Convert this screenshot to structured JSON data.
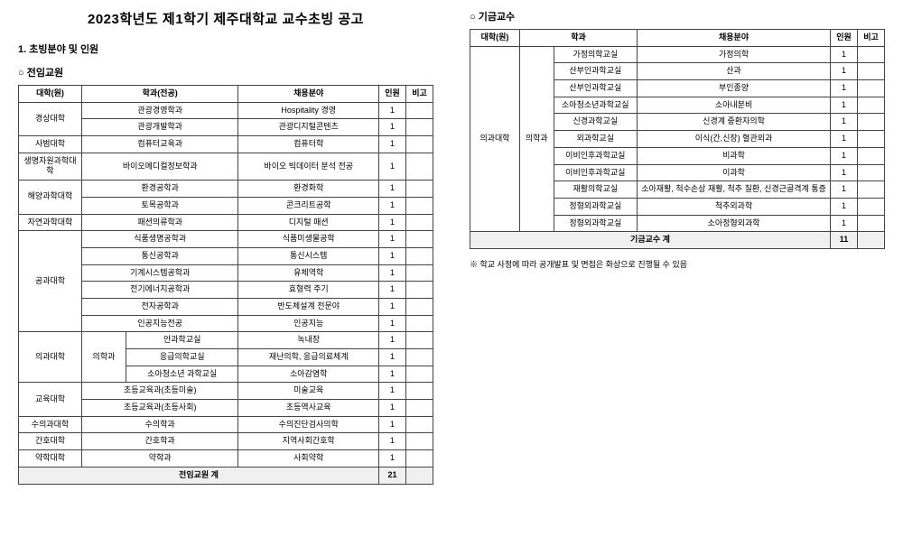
{
  "title": "2023학년도 제1학기 제주대학교 교수초빙 공고",
  "section1": "1. 초빙분야 및 인원",
  "leftSubtitle": "○ 전임교원",
  "rightSubtitle": "○ 기금교수",
  "headers": {
    "col1": "대학(원)",
    "col2": "학과(전공)",
    "col2b": "학과",
    "col3": "채용분야",
    "col4": "인원",
    "col5": "비고"
  },
  "leftRows": [
    {
      "c": "경상대학",
      "rs": 2,
      "d": "관광경영학과",
      "cs": 2,
      "f": "Hospitality 경영",
      "n": "1"
    },
    {
      "d": "관광개발학과",
      "cs": 2,
      "f": "관광디지털콘텐츠",
      "n": "1"
    },
    {
      "c": "사범대학",
      "rs": 1,
      "d": "컴퓨터교육과",
      "cs": 2,
      "f": "컴퓨터학",
      "n": "1"
    },
    {
      "c": "생명자원과학대학",
      "rs": 1,
      "d": "바이오메디컬정보학과",
      "cs": 2,
      "f": "바이오 빅데이터 분석 전공",
      "n": "1"
    },
    {
      "c": "해양과학대학",
      "rs": 2,
      "d": "환경공학과",
      "cs": 2,
      "f": "환경화학",
      "n": "1"
    },
    {
      "d": "토목공학과",
      "cs": 2,
      "f": "콘크리트공학",
      "n": "1"
    },
    {
      "c": "자연과학대학",
      "rs": 1,
      "d": "패션의류학과",
      "cs": 2,
      "f": "디지털 패션",
      "n": "1"
    },
    {
      "c": "공과대학",
      "rs": 6,
      "d": "식품생명공학과",
      "cs": 2,
      "f": "식품미생물공학",
      "n": "1"
    },
    {
      "d": "통신공학과",
      "cs": 2,
      "f": "통신시스템",
      "n": "1"
    },
    {
      "d": "기계시스템공학과",
      "cs": 2,
      "f": "유체역학",
      "n": "1"
    },
    {
      "d": "전기에너지공학과",
      "cs": 2,
      "f": "효형력 주기",
      "n": "1"
    },
    {
      "d": "전자공학과",
      "cs": 2,
      "f": "반도체설계 전문야",
      "n": "1"
    },
    {
      "d": "인공지능전공",
      "cs": 2,
      "f": "인공지능",
      "n": "1"
    },
    {
      "c": "의과대학",
      "rs": 3,
      "d": "의학과",
      "drs": 3,
      "e": "안과학교실",
      "f": "녹내장",
      "n": "1"
    },
    {
      "e": "응급의학교실",
      "f": "재난의학, 응급의료체계",
      "n": "1"
    },
    {
      "e": "소아청소년 과학교실",
      "f": "소아감염학",
      "n": "1"
    },
    {
      "c": "교육대학",
      "rs": 2,
      "d": "초등교육과(초등미술)",
      "cs": 2,
      "f": "미술교육",
      "n": "1"
    },
    {
      "d": "초등교육과(초등사회)",
      "cs": 2,
      "f": "초등역사교육",
      "n": "1"
    },
    {
      "c": "수의과대학",
      "rs": 1,
      "d": "수의학과",
      "cs": 2,
      "f": "수의진단검사의학",
      "n": "1"
    },
    {
      "c": "간호대학",
      "rs": 1,
      "d": "간호학과",
      "cs": 2,
      "f": "지역사회간호학",
      "n": "1"
    },
    {
      "c": "약학대학",
      "rs": 1,
      "d": "약학과",
      "cs": 2,
      "f": "사회약학",
      "n": "1"
    }
  ],
  "leftTotal": {
    "label": "전임교원 계",
    "n": "21"
  },
  "rightRows": [
    {
      "c": "의과대학",
      "rs": 11,
      "d": "의학과",
      "drs": 11,
      "e": "가정의학교실",
      "f": "가정의학",
      "n": "1"
    },
    {
      "e": "산부인과학교실",
      "f": "산과",
      "n": "1"
    },
    {
      "e": "산부인과학교실",
      "f": "부인종양",
      "n": "1"
    },
    {
      "e": "소아청소년과학교실",
      "f": "소아내분비",
      "n": "1"
    },
    {
      "e": "신경과학교실",
      "f": "신경계 중환자의학",
      "n": "1"
    },
    {
      "e": "외과학교실",
      "f": "이식(간,신장) 혈관외과",
      "n": "1"
    },
    {
      "e": "이비인후과학교실",
      "f": "비과학",
      "n": "1"
    },
    {
      "e": "이비인후과학교실",
      "f": "이과학",
      "n": "1"
    },
    {
      "e": "재활의학교실",
      "f": "소아재활, 척수손상 재활, 척추 질환, 신경근골격계 통증",
      "n": "1"
    },
    {
      "e": "정형외과학교실",
      "f": "척추외과학",
      "n": "1"
    },
    {
      "e": "정형외과학교실",
      "f": "소아정형외과학",
      "n": "1"
    }
  ],
  "rightTotal": {
    "label": "기금교수 계",
    "n": "11"
  },
  "note": "※ 학교 사정에 따라 공개발표 및 면접은 화상으로 진행될 수 있음"
}
